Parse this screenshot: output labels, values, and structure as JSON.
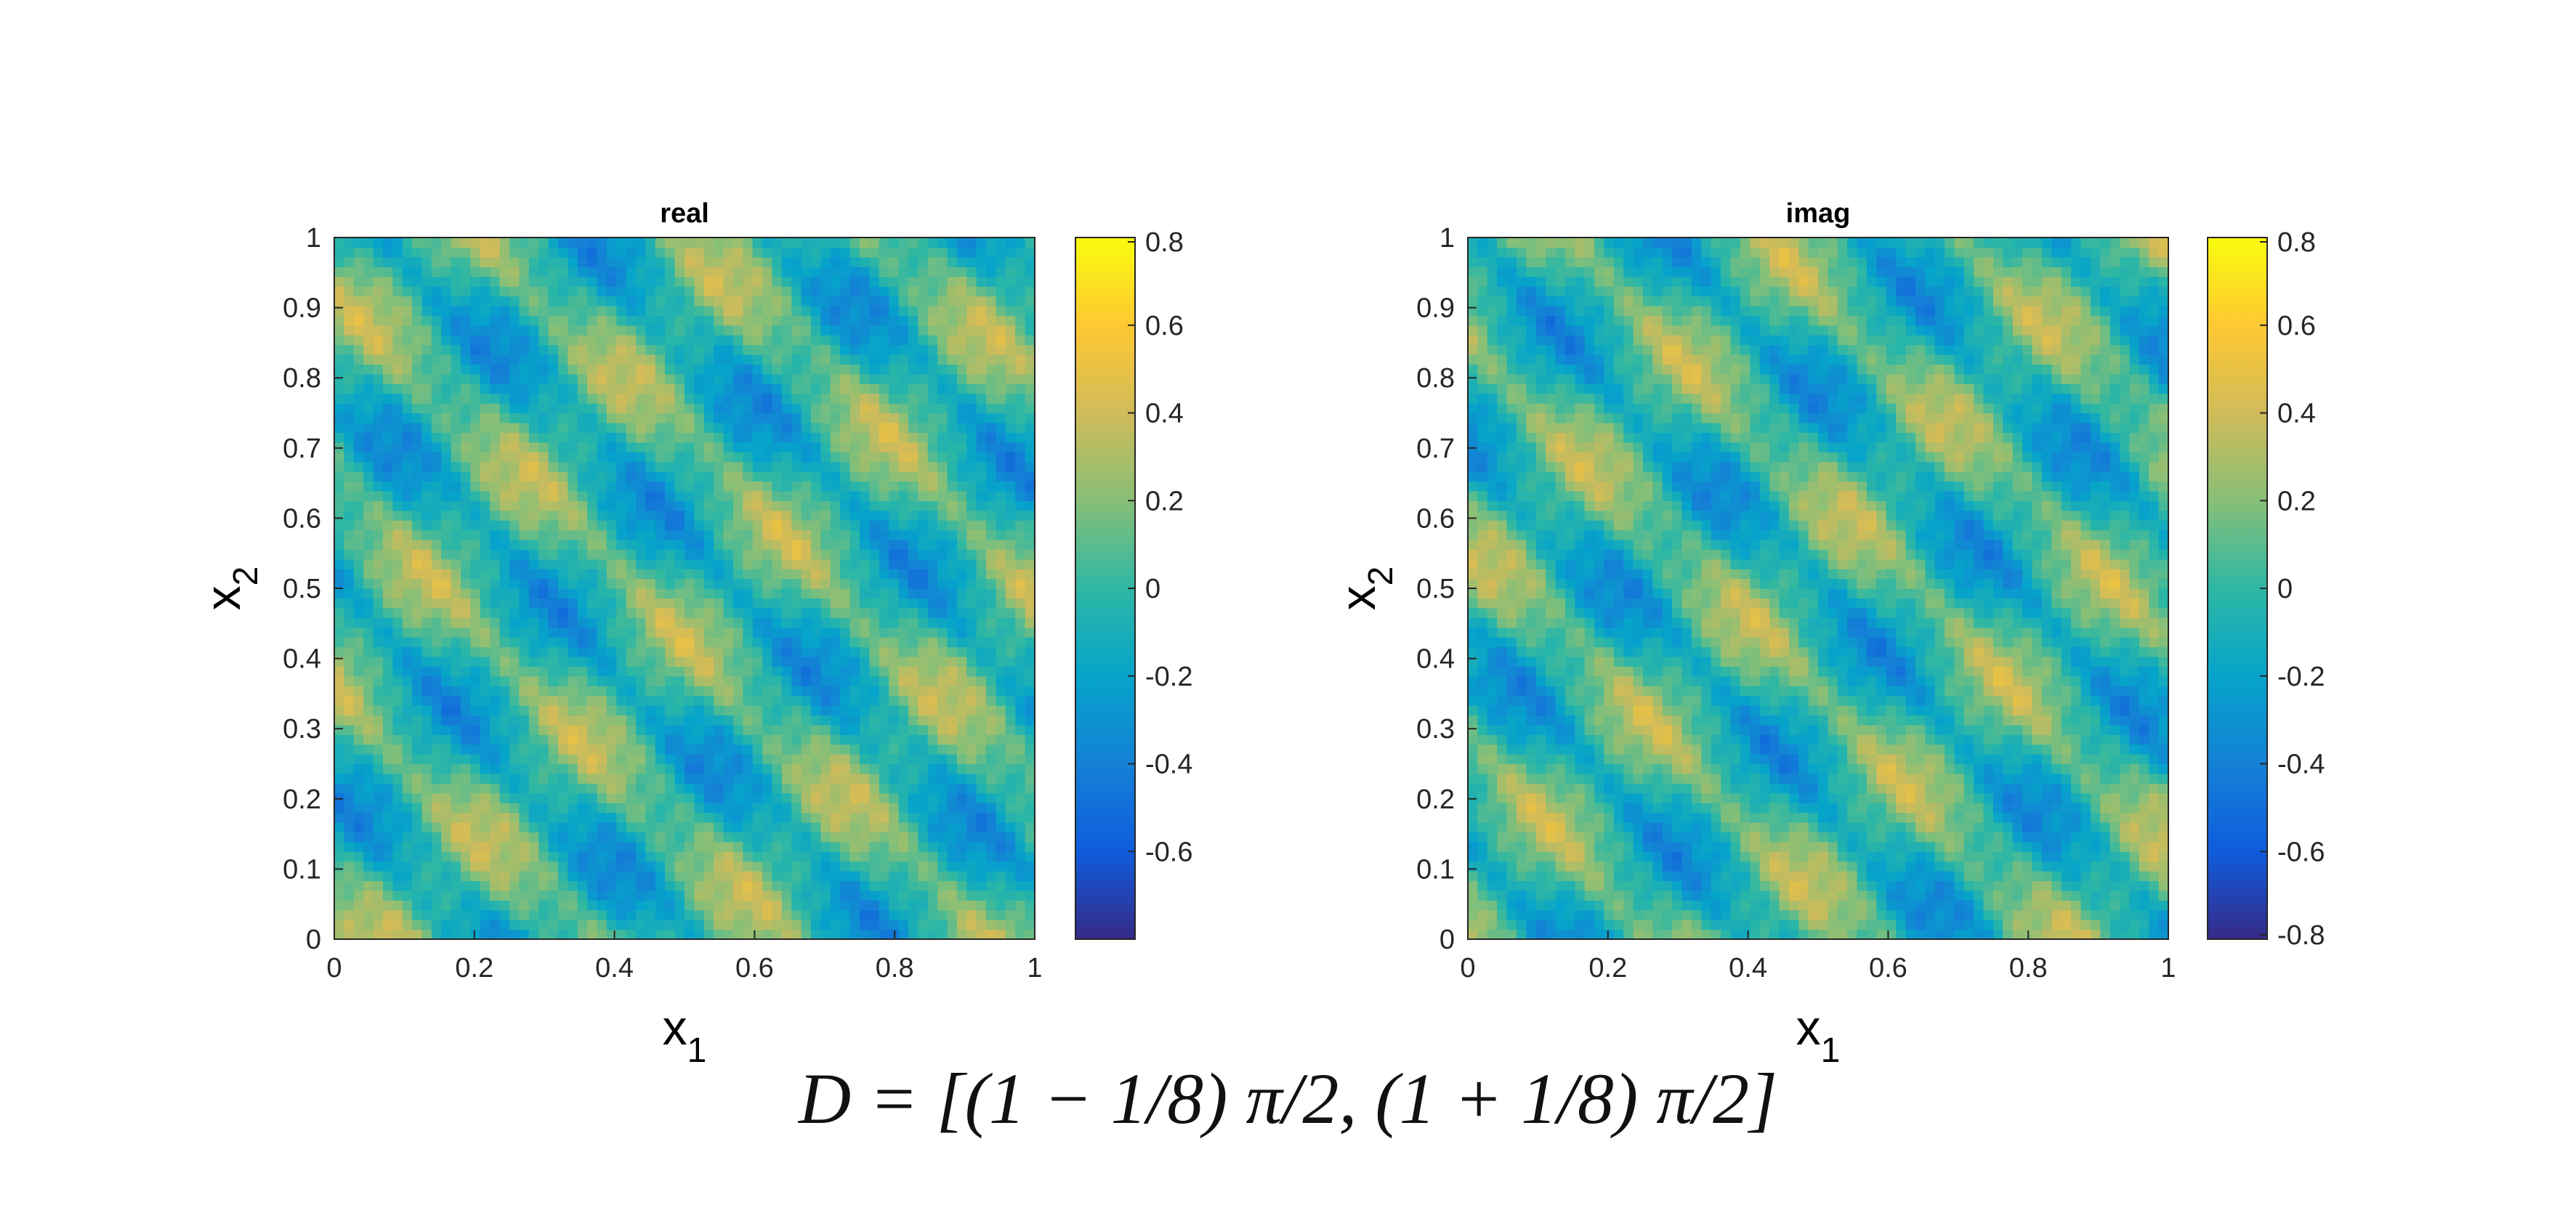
{
  "chart_data": [
    {
      "type": "heatmap",
      "title": "real",
      "xlabel": "x",
      "xlabel_sub": "1",
      "ylabel": "x",
      "ylabel_sub": "2",
      "xlim": [
        0,
        1
      ],
      "ylim": [
        0,
        1
      ],
      "xticks": [
        "0",
        "0.2",
        "0.4",
        "0.6",
        "0.8",
        "1"
      ],
      "yticks": [
        "0",
        "0.1",
        "0.2",
        "0.3",
        "0.4",
        "0.5",
        "0.6",
        "0.7",
        "0.8",
        "0.9",
        "1"
      ],
      "clim": [
        -0.8,
        0.8
      ],
      "colorbar_ticks": [
        "-0.6",
        "-0.4",
        "-0.2",
        "0",
        "0.2",
        "0.4",
        "0.6",
        "0.8"
      ],
      "colormap": "parula",
      "field": {
        "description_values": "oscillatory field, diagonal stripes running top-left to bottom-right",
        "stripe_direction_deg": 135,
        "mean": 0,
        "amplitude": 0.8
      }
    },
    {
      "type": "heatmap",
      "title": "imag",
      "xlabel": "x",
      "xlabel_sub": "1",
      "ylabel": "x",
      "ylabel_sub": "2",
      "xlim": [
        0,
        1
      ],
      "ylim": [
        0,
        1
      ],
      "xticks": [
        "0",
        "0.2",
        "0.4",
        "0.6",
        "0.8",
        "1"
      ],
      "yticks": [
        "0",
        "0.1",
        "0.2",
        "0.3",
        "0.4",
        "0.5",
        "0.6",
        "0.7",
        "0.8",
        "0.9",
        "1"
      ],
      "clim": [
        -0.8,
        0.8
      ],
      "colorbar_ticks": [
        "-0.8",
        "-0.6",
        "-0.4",
        "-0.2",
        "0",
        "0.2",
        "0.4",
        "0.6",
        "0.8"
      ],
      "colormap": "parula",
      "field": {
        "stripe_direction_deg": 135,
        "mean": 0,
        "amplitude": 0.8
      }
    }
  ],
  "formula": "D = [(1 − 1/8) π/2, (1 + 1/8) π/2]",
  "colors": {
    "axis": "#262626",
    "parula": [
      "#352a87",
      "#0f5cdd",
      "#1481d6",
      "#06a4ca",
      "#2eb7a4",
      "#87bf77",
      "#d1bb59",
      "#fec832",
      "#f9fb0e"
    ]
  }
}
